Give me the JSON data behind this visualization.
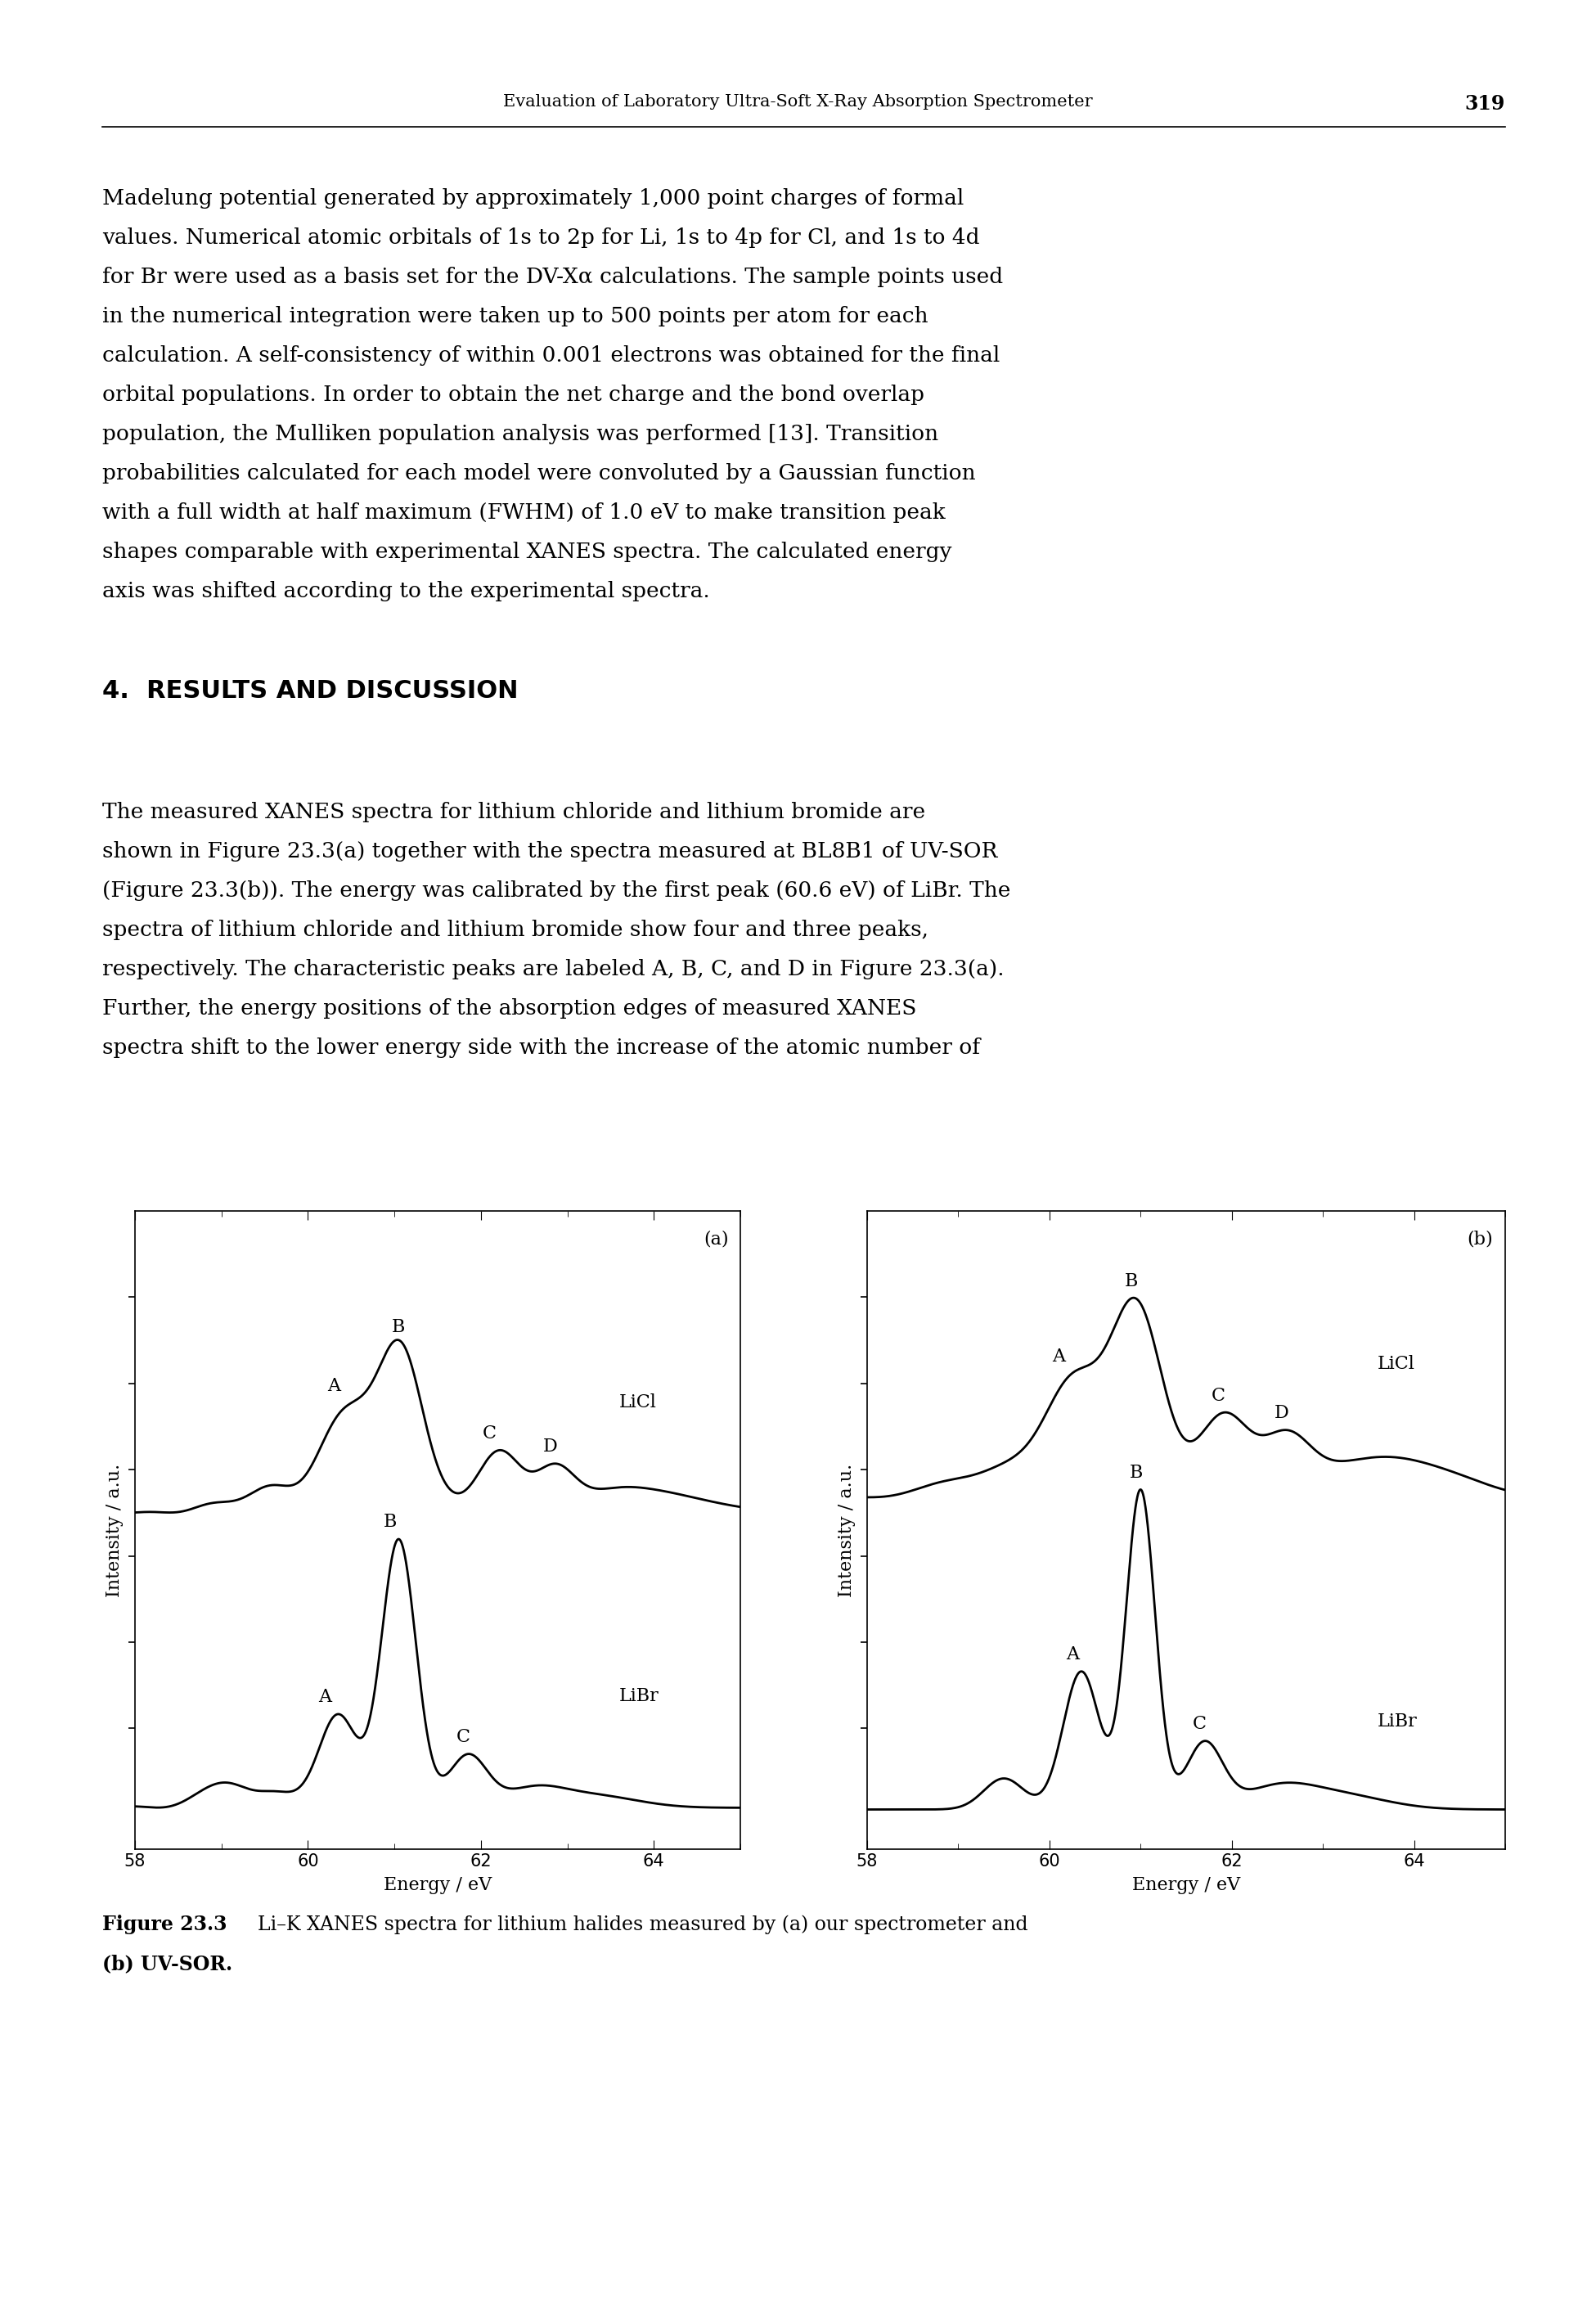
{
  "page_title": "Evaluation of Laboratory Ultra-Soft X-Ray Absorption Spectrometer",
  "page_number": "319",
  "section_title": "4.  RESULTS AND DISCUSSION",
  "p1_lines": [
    "Madelung potential generated by approximately 1,000 point charges of formal",
    "values. Numerical atomic orbitals of 1s to 2p for Li, 1s to 4p for Cl, and 1s to 4d",
    "for Br were used as a basis set for the DV-Xα calculations. The sample points used",
    "in the numerical integration were taken up to 500 points per atom for each",
    "calculation. A self-consistency of within 0.001 electrons was obtained for the final",
    "orbital populations. In order to obtain the net charge and the bond overlap",
    "population, the Mulliken population analysis was performed [13]. Transition",
    "probabilities calculated for each model were convoluted by a Gaussian function",
    "with a full width at half maximum (FWHM) of 1.0 eV to make transition peak",
    "shapes comparable with experimental XANES spectra. The calculated energy",
    "axis was shifted according to the experimental spectra."
  ],
  "p2_lines": [
    "The measured XANES spectra for lithium chloride and lithium bromide are",
    "shown in Figure 23.3(a) together with the spectra measured at BL8B1 of UV-SOR",
    "(Figure 23.3(b)). The energy was calibrated by the first peak (60.6 eV) of LiBr. The",
    "spectra of lithium chloride and lithium bromide show four and three peaks,",
    "respectively. The characteristic peaks are labeled A, B, C, and D in Figure 23.3(a).",
    "Further, the energy positions of the absorption edges of measured XANES",
    "spectra shift to the lower energy side with the increase of the atomic number of"
  ],
  "caption_bold": "Figure 23.3",
  "caption_line1": "  Li–K XANES spectra for lithium halides measured by (a) our spectrometer and",
  "caption_line2": "(b) UV-SOR.",
  "xlabel": "Energy / eV",
  "ylabel": "Intensity / a.u.",
  "xticks": [
    58,
    60,
    62,
    64
  ],
  "background_color": "#ffffff",
  "line_color": "#000000"
}
